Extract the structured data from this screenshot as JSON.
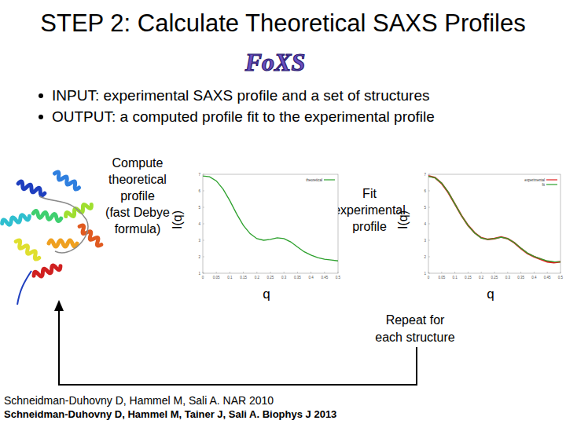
{
  "title": "STEP 2: Calculate Theoretical SAXS Profiles",
  "logo": "FoXS",
  "bullets": [
    "INPUT: experimental SAXS profile and a set of structures",
    "OUTPUT: a computed profile fit to the experimental profile"
  ],
  "steps": [
    {
      "lines": [
        "Compute",
        "theoretical",
        "profile",
        "(fast Debye",
        "formula)"
      ]
    },
    {
      "lines": [
        "Fit",
        "experimental",
        "profile"
      ]
    }
  ],
  "loop_label": [
    "Repeat for",
    "each structure"
  ],
  "references": [
    "Schneidman-Duhovny D, Hammel M, Sali A. NAR 2010",
    "Schneidman-Duhovny D, Hammel M, Tainer J, Sali A. Biophys J 2013"
  ],
  "chart_data": [
    {
      "type": "line",
      "x_label": "q",
      "y_label": "I(q)",
      "x": [
        0,
        0.025,
        0.05,
        0.075,
        0.1,
        0.125,
        0.15,
        0.175,
        0.2,
        0.225,
        0.25,
        0.275,
        0.3,
        0.325,
        0.35,
        0.375,
        0.4,
        0.425,
        0.45,
        0.475,
        0.5
      ],
      "series": [
        {
          "name": "theoretical",
          "color": "#2ca02c",
          "values": [
            6.9,
            6.85,
            6.6,
            6.1,
            5.4,
            4.6,
            3.9,
            3.4,
            3.1,
            3.0,
            3.05,
            3.15,
            3.1,
            2.9,
            2.6,
            2.3,
            2.1,
            1.95,
            1.85,
            1.8,
            1.75
          ]
        }
      ],
      "xlim": [
        0,
        0.5
      ],
      "ylim": [
        1,
        7
      ],
      "xticks": [
        0,
        0.05,
        0.1,
        0.15,
        0.2,
        0.25,
        0.3,
        0.35,
        0.4,
        0.45,
        0.5
      ],
      "yticks": [
        1,
        2,
        3,
        4,
        5,
        6,
        7
      ],
      "grid": false,
      "legend": "top-right"
    },
    {
      "type": "line",
      "x_label": "q",
      "y_label": "I(q)",
      "x": [
        0,
        0.025,
        0.05,
        0.075,
        0.1,
        0.125,
        0.15,
        0.175,
        0.2,
        0.225,
        0.25,
        0.275,
        0.3,
        0.325,
        0.35,
        0.375,
        0.4,
        0.425,
        0.45,
        0.475,
        0.5
      ],
      "series": [
        {
          "name": "experimental",
          "color": "#e02020",
          "values": [
            6.9,
            6.8,
            6.45,
            5.9,
            5.2,
            4.5,
            3.9,
            3.45,
            3.15,
            3.05,
            3.1,
            3.2,
            3.1,
            2.85,
            2.5,
            2.2,
            2.0,
            1.85,
            1.7,
            1.65,
            1.7
          ]
        },
        {
          "name": "fit",
          "color": "#2ca02c",
          "values": [
            6.88,
            6.79,
            6.47,
            5.92,
            5.21,
            4.5,
            3.9,
            3.44,
            3.14,
            3.05,
            3.1,
            3.18,
            3.1,
            2.86,
            2.52,
            2.22,
            2.02,
            1.87,
            1.75,
            1.7,
            1.68
          ]
        }
      ],
      "xlim": [
        0,
        0.5
      ],
      "ylim": [
        1,
        7
      ],
      "xticks": [
        0,
        0.05,
        0.1,
        0.15,
        0.2,
        0.25,
        0.3,
        0.35,
        0.4,
        0.45,
        0.5
      ],
      "yticks": [
        1,
        2,
        3,
        4,
        5,
        6,
        7
      ],
      "grid": false,
      "legend": "top-right"
    }
  ]
}
